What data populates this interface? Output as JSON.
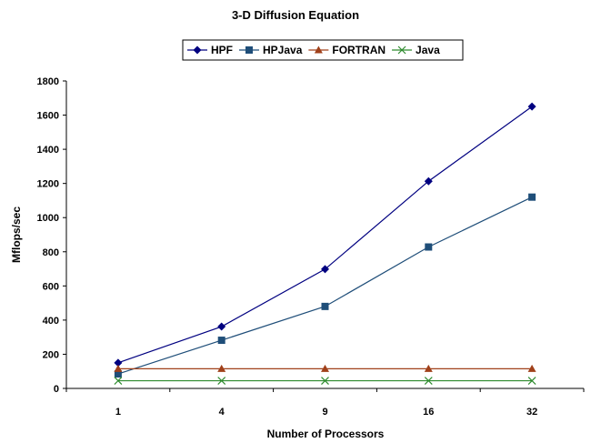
{
  "chart_data": {
    "type": "line",
    "title": "3-D Diffusion Equation",
    "xlabel": "Number of Processors",
    "ylabel": "Mflops/sec",
    "categories": [
      "1",
      "4",
      "9",
      "16",
      "32"
    ],
    "ylim": [
      0,
      1800
    ],
    "yticks": [
      0,
      200,
      400,
      600,
      800,
      1000,
      1200,
      1400,
      1600,
      1800
    ],
    "grid": false,
    "legend_position": "top",
    "series": [
      {
        "name": "HPF",
        "values": [
          150,
          362,
          698,
          1213,
          1650
        ],
        "color": "#000080",
        "marker": "diamond"
      },
      {
        "name": "HPJava",
        "values": [
          85,
          282,
          480,
          828,
          1120
        ],
        "color": "#1F4E79",
        "marker": "square"
      },
      {
        "name": "FORTRAN",
        "values": [
          115,
          115,
          115,
          115,
          115
        ],
        "color": "#A0401A",
        "marker": "triangle"
      },
      {
        "name": "Java",
        "values": [
          45,
          45,
          45,
          45,
          45
        ],
        "color": "#2E8B2E",
        "marker": "x"
      }
    ]
  }
}
